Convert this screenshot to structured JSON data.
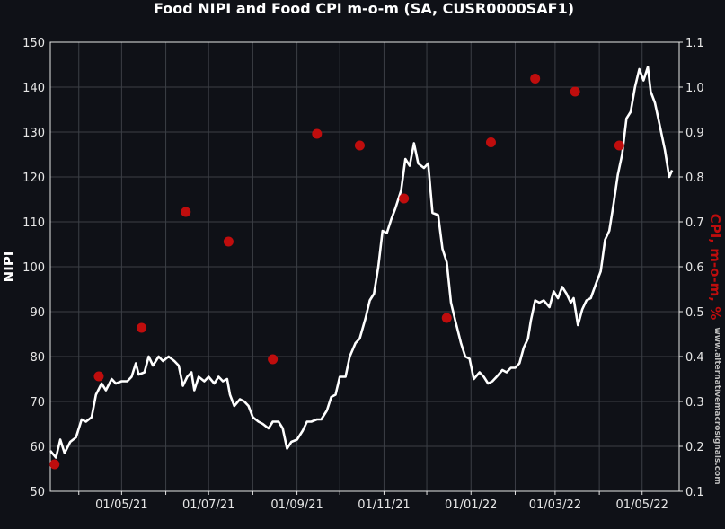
{
  "chart_data": {
    "type": "line",
    "title": "Food NIPI and Food CPI m-o-m (SA, CUSR0000SAF1)",
    "ylabel": "NIPI",
    "y2label": "CPI, m-o-m, %",
    "watermark": "www.alternativemacrosignals.com",
    "ylim": [
      50,
      150
    ],
    "y2lim": [
      0.1,
      1.1
    ],
    "yticks": [
      50,
      60,
      70,
      80,
      90,
      100,
      110,
      120,
      130,
      140,
      150
    ],
    "y2ticks": [
      "0.1",
      "0.2",
      "0.3",
      "0.4",
      "0.5",
      "0.6",
      "0.7",
      "0.8",
      "0.9",
      "1.0",
      "1.1"
    ],
    "xlim": [
      "2021-03-12",
      "2022-05-27"
    ],
    "xticks": [
      {
        "date": "2021-05-01",
        "label": "01/05/21"
      },
      {
        "date": "2021-07-01",
        "label": "01/07/21"
      },
      {
        "date": "2021-09-01",
        "label": "01/09/21"
      },
      {
        "date": "2021-11-01",
        "label": "01/11/21"
      },
      {
        "date": "2022-01-01",
        "label": "01/01/22"
      },
      {
        "date": "2022-03-01",
        "label": "01/03/22"
      },
      {
        "date": "2022-05-01",
        "label": "01/05/22"
      }
    ],
    "grid": true,
    "colors": {
      "background": "#0f1117",
      "nipi": "#ffffff",
      "cpi": "#bf0d0d",
      "grid": "#3c3f46",
      "axis": "#e6e6e6"
    },
    "series": [
      {
        "name": "NIPI",
        "style": "line",
        "points": [
          [
            "2021-03-12",
            59
          ],
          [
            "2021-03-16",
            57.5
          ],
          [
            "2021-03-19",
            61.5
          ],
          [
            "2021-03-22",
            58.5
          ],
          [
            "2021-03-26",
            61
          ],
          [
            "2021-03-30",
            62
          ],
          [
            "2021-04-03",
            66
          ],
          [
            "2021-04-06",
            65.5
          ],
          [
            "2021-04-10",
            66.5
          ],
          [
            "2021-04-13",
            71.5
          ],
          [
            "2021-04-17",
            74
          ],
          [
            "2021-04-20",
            72.5
          ],
          [
            "2021-04-24",
            75
          ],
          [
            "2021-04-27",
            74
          ],
          [
            "2021-05-01",
            74.5
          ],
          [
            "2021-05-05",
            74.5
          ],
          [
            "2021-05-08",
            75.5
          ],
          [
            "2021-05-11",
            78.5
          ],
          [
            "2021-05-13",
            76
          ],
          [
            "2021-05-17",
            76.5
          ],
          [
            "2021-05-20",
            80
          ],
          [
            "2021-05-23",
            78
          ],
          [
            "2021-05-27",
            80
          ],
          [
            "2021-05-30",
            79
          ],
          [
            "2021-06-03",
            80
          ],
          [
            "2021-06-07",
            79
          ],
          [
            "2021-06-10",
            78
          ],
          [
            "2021-06-13",
            73.5
          ],
          [
            "2021-06-16",
            75.5
          ],
          [
            "2021-06-19",
            76.5
          ],
          [
            "2021-06-21",
            72.5
          ],
          [
            "2021-06-24",
            75.5
          ],
          [
            "2021-06-28",
            74.5
          ],
          [
            "2021-07-01",
            75.5
          ],
          [
            "2021-07-05",
            74
          ],
          [
            "2021-07-08",
            75.5
          ],
          [
            "2021-07-11",
            74.5
          ],
          [
            "2021-07-14",
            75
          ],
          [
            "2021-07-16",
            71.5
          ],
          [
            "2021-07-19",
            69
          ],
          [
            "2021-07-23",
            70.5
          ],
          [
            "2021-07-26",
            70
          ],
          [
            "2021-07-29",
            69
          ],
          [
            "2021-08-01",
            66.5
          ],
          [
            "2021-08-05",
            65.5
          ],
          [
            "2021-08-08",
            65
          ],
          [
            "2021-08-12",
            64
          ],
          [
            "2021-08-15",
            65.5
          ],
          [
            "2021-08-19",
            65.5
          ],
          [
            "2021-08-22",
            64
          ],
          [
            "2021-08-25",
            59.5
          ],
          [
            "2021-08-28",
            61
          ],
          [
            "2021-09-01",
            61.5
          ],
          [
            "2021-09-05",
            63.5
          ],
          [
            "2021-09-08",
            65.5
          ],
          [
            "2021-09-11",
            65.5
          ],
          [
            "2021-09-15",
            66
          ],
          [
            "2021-09-18",
            66
          ],
          [
            "2021-09-22",
            68
          ],
          [
            "2021-09-25",
            71
          ],
          [
            "2021-09-28",
            71.5
          ],
          [
            "2021-10-01",
            75.5
          ],
          [
            "2021-10-05",
            75.5
          ],
          [
            "2021-10-08",
            80
          ],
          [
            "2021-10-12",
            83
          ],
          [
            "2021-10-15",
            84
          ],
          [
            "2021-10-19",
            88.5
          ],
          [
            "2021-10-22",
            92.5
          ],
          [
            "2021-10-25",
            94
          ],
          [
            "2021-10-28",
            100
          ],
          [
            "2021-10-31",
            108
          ],
          [
            "2021-11-03",
            107.5
          ],
          [
            "2021-11-06",
            110.5
          ],
          [
            "2021-11-09",
            113
          ],
          [
            "2021-11-13",
            117
          ],
          [
            "2021-11-16",
            124
          ],
          [
            "2021-11-19",
            122.5
          ],
          [
            "2021-11-22",
            127.5
          ],
          [
            "2021-11-25",
            123
          ],
          [
            "2021-11-29",
            122
          ],
          [
            "2021-12-02",
            123
          ],
          [
            "2021-12-05",
            112
          ],
          [
            "2021-12-09",
            111.5
          ],
          [
            "2021-12-12",
            104
          ],
          [
            "2021-12-15",
            101
          ],
          [
            "2021-12-18",
            92
          ],
          [
            "2021-12-21",
            88
          ],
          [
            "2021-12-25",
            83
          ],
          [
            "2021-12-28",
            80
          ],
          [
            "2021-12-31",
            79.5
          ],
          [
            "2022-01-03",
            75
          ],
          [
            "2022-01-07",
            76.5
          ],
          [
            "2022-01-10",
            75.5
          ],
          [
            "2022-01-13",
            74
          ],
          [
            "2022-01-16",
            74.5
          ],
          [
            "2022-01-19",
            75.5
          ],
          [
            "2022-01-23",
            77
          ],
          [
            "2022-01-26",
            76.5
          ],
          [
            "2022-01-29",
            77.5
          ],
          [
            "2022-02-01",
            77.5
          ],
          [
            "2022-02-04",
            78.5
          ],
          [
            "2022-02-07",
            82
          ],
          [
            "2022-02-10",
            84
          ],
          [
            "2022-02-12",
            88
          ],
          [
            "2022-02-15",
            92.5
          ],
          [
            "2022-02-18",
            92
          ],
          [
            "2022-02-21",
            92.5
          ],
          [
            "2022-02-25",
            91
          ],
          [
            "2022-02-28",
            94.5
          ],
          [
            "2022-03-03",
            93
          ],
          [
            "2022-03-06",
            95.5
          ],
          [
            "2022-03-09",
            94
          ],
          [
            "2022-03-12",
            92
          ],
          [
            "2022-03-14",
            93
          ],
          [
            "2022-03-17",
            87
          ],
          [
            "2022-03-20",
            90.5
          ],
          [
            "2022-03-23",
            92.5
          ],
          [
            "2022-03-26",
            93
          ],
          [
            "2022-03-30",
            96.5
          ],
          [
            "2022-04-02",
            99
          ],
          [
            "2022-04-05",
            106
          ],
          [
            "2022-04-08",
            108
          ],
          [
            "2022-04-11",
            114
          ],
          [
            "2022-04-14",
            120.5
          ],
          [
            "2022-04-17",
            125
          ],
          [
            "2022-04-20",
            133
          ],
          [
            "2022-04-23",
            134.5
          ],
          [
            "2022-04-26",
            140
          ],
          [
            "2022-04-29",
            144
          ],
          [
            "2022-05-02",
            141.5
          ],
          [
            "2022-05-05",
            144.5
          ],
          [
            "2022-05-07",
            139
          ],
          [
            "2022-05-10",
            136.5
          ],
          [
            "2022-05-13",
            132
          ],
          [
            "2022-05-17",
            126
          ],
          [
            "2022-05-20",
            120
          ],
          [
            "2022-05-22",
            121.5
          ]
        ]
      },
      {
        "name": "CPI, m-o-m, %",
        "style": "markers",
        "axis": "right",
        "points": [
          [
            "2021-03-15",
            0.16
          ],
          [
            "2021-04-15",
            0.356
          ],
          [
            "2021-05-15",
            0.464
          ],
          [
            "2021-06-15",
            0.722
          ],
          [
            "2021-07-15",
            0.656
          ],
          [
            "2021-08-15",
            0.394
          ],
          [
            "2021-09-15",
            0.896
          ],
          [
            "2021-10-15",
            0.87
          ],
          [
            "2021-11-15",
            0.752
          ],
          [
            "2021-12-15",
            0.486
          ],
          [
            "2022-01-15",
            0.877
          ],
          [
            "2022-02-15",
            1.019
          ],
          [
            "2022-03-15",
            0.99
          ],
          [
            "2022-04-15",
            0.87
          ]
        ]
      }
    ]
  }
}
